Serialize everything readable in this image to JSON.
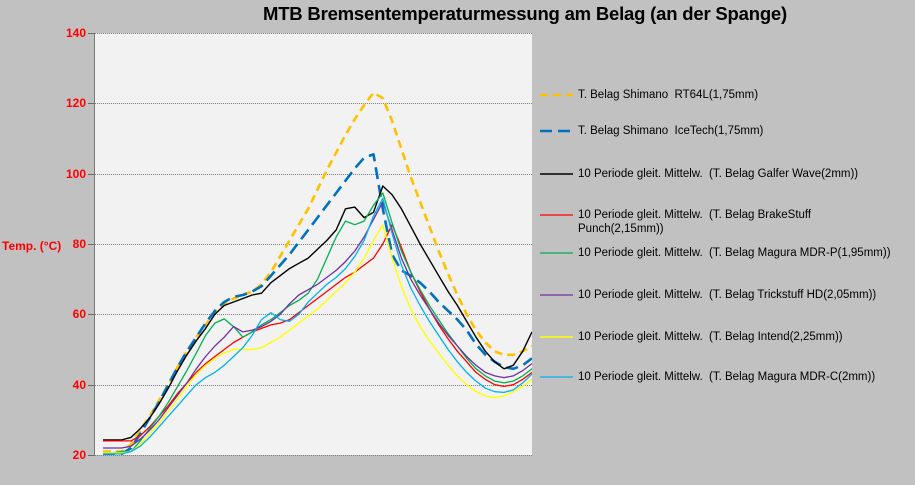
{
  "title": "MTB Bremsentemperaturmessung am Belag (an der Spange)",
  "y_axis": {
    "label": "Temp. (°C)",
    "ticks": [
      140,
      120,
      100,
      80,
      60,
      40,
      20
    ],
    "tick_color": "#ff0000"
  },
  "colors": {
    "background": "#c1c1c1",
    "plot_background": "#f2f2f2",
    "gridline": "#7e7e7e",
    "axis_line": "#7a7a7a",
    "title_text": "#000000",
    "legend_text": "#000000"
  },
  "chart_data": {
    "type": "line",
    "title": "MTB Bremsentemperaturmessung am Belag (an der Spange)",
    "xlabel": "",
    "ylabel": "Temp. (°C)",
    "ylim": [
      20,
      140
    ],
    "y_ticks": [
      140,
      120,
      100,
      80,
      60,
      40,
      20
    ],
    "x_axis_ticks": [],
    "grid": "horizontal dotted",
    "legend_position": "right",
    "series": [
      {
        "name": "T. Belag Shimano  RT64L(1,75mm)",
        "label_lines": [
          "T. Belag Shimano  RT64L(1,75mm)"
        ],
        "color": "#FFC000",
        "dash": "8 5",
        "line_width": 2.6,
        "values": [
          21,
          21,
          21,
          23,
          27,
          31,
          35.5,
          40,
          45,
          49.5,
          53.5,
          57,
          60.5,
          63,
          64.5,
          65.5,
          66.5,
          68.5,
          72,
          76.5,
          81,
          85.5,
          90,
          95.5,
          101,
          106,
          111,
          115.5,
          119.5,
          123,
          121.5,
          115,
          107,
          99,
          92,
          85,
          78,
          71.5,
          65.5,
          60,
          55.5,
          52,
          49.5,
          48.5,
          48.5,
          49.5,
          51
        ]
      },
      {
        "name": "T. Belag Shimano  IceTech(1,75mm)",
        "label_lines": [
          "T. Belag Shimano  IceTech(1,75mm)"
        ],
        "color": "#0070C0",
        "dash": "12 6",
        "line_width": 2.6,
        "values": [
          20.3,
          20.3,
          20.3,
          22,
          26,
          30.5,
          35,
          40,
          45,
          49.5,
          53.5,
          57.5,
          61,
          63.5,
          65,
          65.5,
          66.5,
          68,
          71,
          74,
          77,
          80.5,
          84,
          87.5,
          91,
          94.5,
          98,
          101.5,
          104.5,
          105.5,
          90,
          77,
          72.5,
          71,
          69,
          66.5,
          63.5,
          61,
          58.5,
          55.5,
          51.5,
          48.5,
          46.5,
          45,
          44.5,
          45.5,
          47.5
        ]
      },
      {
        "name": "10 Periode gleit. Mittelw.  (T. Belag Galfer Wave(2mm))",
        "label_lines": [
          "10 Periode gleit. Mittelw.  (T. Belag Galfer Wave(2mm))"
        ],
        "color": "#000000",
        "dash": "",
        "line_width": 1.4,
        "values": [
          24.3,
          24.3,
          24.3,
          25,
          27.5,
          30.5,
          34.5,
          39,
          44,
          48.5,
          52.5,
          56,
          60,
          62.5,
          63.5,
          64.5,
          65.5,
          66,
          69,
          71,
          73,
          74.5,
          76,
          78.5,
          81,
          84,
          90,
          90.5,
          87.5,
          89,
          96.5,
          94,
          90,
          85,
          80,
          75.5,
          71,
          66.5,
          62.5,
          58,
          53.5,
          49.5,
          46.5,
          44.5,
          45.5,
          49.5,
          55
        ]
      },
      {
        "name": "10 Periode gleit. Mittelw.  (T. Belag BrakeStuff Punch(2,15mm))",
        "label_lines": [
          "10 Periode gleit. Mittelw.  (T. Belag BrakeStuff",
          "Punch(2,15mm))"
        ],
        "color": "#FF0000",
        "dash": "",
        "line_width": 1.3,
        "values": [
          24,
          24,
          24,
          24,
          25.5,
          28,
          31,
          34,
          37.5,
          40.5,
          43.5,
          46,
          48,
          50,
          52,
          53.5,
          55,
          56,
          57,
          57.5,
          58.5,
          60.5,
          62.5,
          64.5,
          66.5,
          68.5,
          70.5,
          72,
          74,
          76,
          80,
          85.5,
          79,
          72,
          66.5,
          61.5,
          57,
          53,
          49.5,
          46.5,
          43.5,
          41.5,
          40,
          39.5,
          40,
          41.5,
          43.5
        ]
      },
      {
        "name": "10 Periode gleit. Mittelw.  (T. Belag Magura MDR-P(1,95mm))",
        "label_lines": [
          "10 Periode gleit. Mittelw.  (T. Belag Magura MDR-P(1,95mm))"
        ],
        "color": "#00B050",
        "dash": "",
        "line_width": 1.3,
        "values": [
          20.6,
          20.6,
          21,
          21,
          24,
          27.5,
          31,
          35,
          39.5,
          44,
          49,
          54,
          57.5,
          58.7,
          56.5,
          53.5,
          55,
          57,
          58.5,
          60.5,
          62.5,
          64,
          66,
          70,
          76,
          82,
          86.5,
          85.5,
          86.5,
          91,
          94.5,
          86,
          78,
          72,
          67,
          62.5,
          58.5,
          54.5,
          51,
          47.5,
          44.5,
          42.5,
          41,
          40.5,
          41,
          42.5,
          44.5
        ]
      },
      {
        "name": "10 Periode gleit. Mittelw.  (T. Belag Trickstuff HD(2,05mm))",
        "label_lines": [
          "10 Periode gleit. Mittelw.  (T. Belag Trickstuff HD(2,05mm))"
        ],
        "color": "#7030A0",
        "dash": "",
        "line_width": 1.3,
        "values": [
          22,
          22,
          22,
          22.5,
          24.5,
          27,
          30,
          33.5,
          37,
          40.5,
          44.5,
          48,
          51,
          53.5,
          56.5,
          55,
          55.5,
          56.5,
          58,
          60,
          63,
          65.5,
          67,
          68.5,
          70.5,
          72.5,
          75,
          78,
          82,
          87,
          92,
          84,
          76,
          70,
          65.5,
          61.5,
          57.5,
          54,
          51,
          48,
          45.5,
          43.5,
          42.5,
          42,
          42.5,
          44,
          46
        ]
      },
      {
        "name": "10 Periode gleit. Mittelw.  (T. Belag Intend(2,25mm))",
        "label_lines": [
          "10 Periode gleit. Mittelw.  (T. Belag Intend(2,25mm))"
        ],
        "color": "#FFFF00",
        "dash": "",
        "line_width": 1.4,
        "values": [
          20.6,
          20.6,
          20.6,
          21,
          23,
          26,
          29,
          32.5,
          36,
          39.5,
          43,
          45.5,
          47.5,
          49,
          50,
          50,
          50,
          50.5,
          52,
          53.5,
          55.5,
          57.5,
          59.5,
          61.5,
          64,
          66.5,
          69,
          72,
          76,
          81,
          85.5,
          76,
          68,
          61.5,
          56.5,
          52.5,
          49,
          45.5,
          42.5,
          40,
          38,
          36.8,
          36.3,
          36.8,
          38,
          39.5,
          41.5
        ]
      },
      {
        "name": "10 Periode gleit. Mittelw.  (T. Belag Magura MDR-C(2mm))",
        "label_lines": [
          "10 Periode gleit. Mittelw.  (T. Belag Magura MDR-C(2mm))"
        ],
        "color": "#00B0F0",
        "dash": "",
        "line_width": 1.3,
        "values": [
          20.3,
          20.3,
          20.3,
          21,
          22.5,
          25,
          28,
          31,
          34,
          37,
          40,
          42,
          43.5,
          45.5,
          48,
          50.5,
          54,
          58.5,
          60.5,
          58.5,
          58,
          60,
          63.5,
          66,
          68.5,
          70.5,
          73,
          76.5,
          81,
          88,
          93,
          83,
          74,
          67.5,
          62.5,
          58,
          54,
          50,
          46.5,
          43.5,
          41,
          39,
          38,
          37.8,
          38.5,
          40.5,
          43
        ]
      }
    ]
  }
}
